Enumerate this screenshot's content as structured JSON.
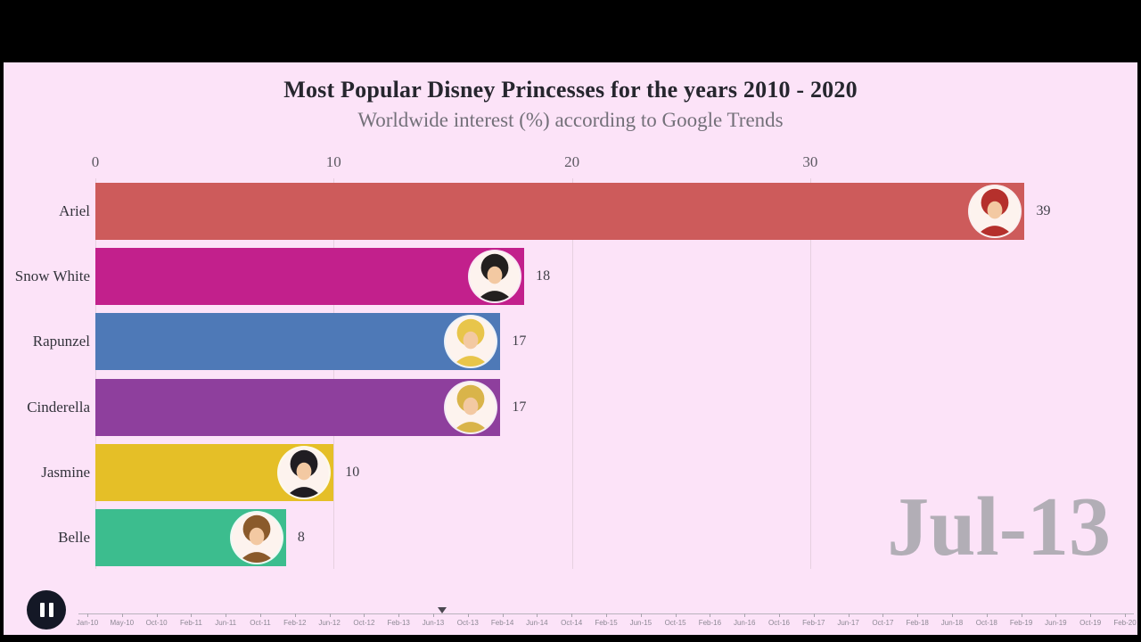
{
  "colors": {
    "background": "#fce3f8",
    "frame": "#000000",
    "grid": "#e6d0e0",
    "watermark": "#b2aeb6",
    "pause_button": "#141826"
  },
  "chart_data": {
    "type": "bar",
    "orientation": "horizontal",
    "title": "Most Popular Disney Princesses for the years 2010 - 2020",
    "subtitle": "Worldwide interest (%) according to Google Trends",
    "current_frame": "Jul-13",
    "xlim": [
      0,
      40
    ],
    "x_ticks": [
      0,
      10,
      20,
      30
    ],
    "grid": true,
    "legend": false,
    "categories": [
      "Ariel",
      "Snow White",
      "Rapunzel",
      "Cinderella",
      "Jasmine",
      "Belle"
    ],
    "values": [
      39,
      18,
      17,
      17,
      10,
      8
    ],
    "bar_colors": [
      "#cd5b5b",
      "#c2208c",
      "#4e79b7",
      "#8e3f9d",
      "#e5bf27",
      "#3cbd8e"
    ],
    "avatar_hair_colors": [
      "#b5302c",
      "#23201f",
      "#e8c54a",
      "#d9b44a",
      "#201d22",
      "#8a5a2b"
    ]
  },
  "timeline": {
    "tick_labels": [
      "Jan-10",
      "May-10",
      "Oct-10",
      "Feb-11",
      "Jun-11",
      "Oct-11",
      "Feb-12",
      "Jun-12",
      "Oct-12",
      "Feb-13",
      "Jun-13",
      "Oct-13",
      "Feb-14",
      "Jun-14",
      "Oct-14",
      "Feb-15",
      "Jun-15",
      "Oct-15",
      "Feb-16",
      "Jun-16",
      "Oct-16",
      "Feb-17",
      "Jun-17",
      "Oct-17",
      "Feb-18",
      "Jun-18",
      "Oct-18",
      "Feb-19",
      "Jun-19",
      "Oct-19",
      "Feb-20"
    ],
    "current_position_label": "Jul-13"
  },
  "controls": {
    "pause_label": "pause"
  }
}
